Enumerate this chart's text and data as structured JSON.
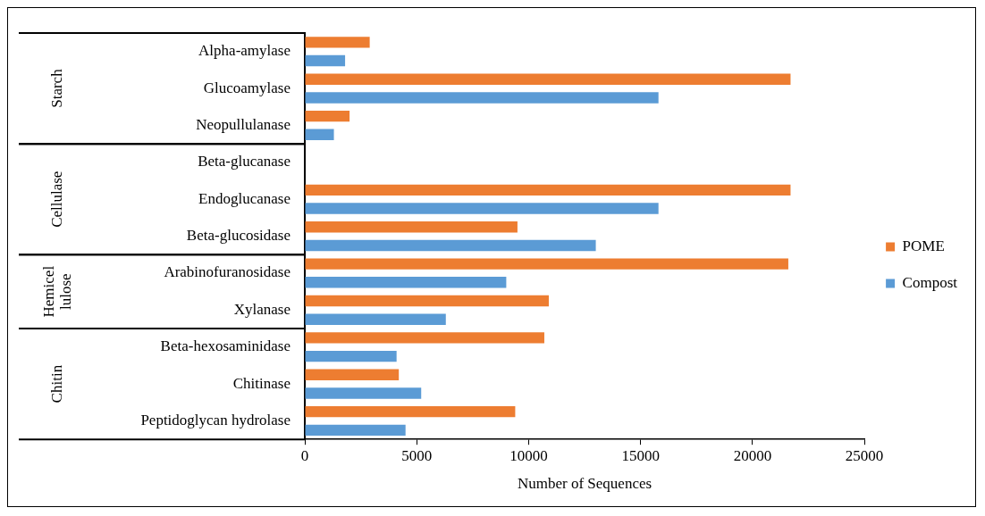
{
  "chart_data": {
    "type": "bar",
    "orientation": "horizontal",
    "xlabel": "Number of Sequences",
    "categories": [
      "Alpha-amylase",
      "Glucoamylase",
      "Neopullulanase",
      "Beta-glucanase",
      "Endoglucanase",
      "Beta-glucosidase",
      "Arabinofuranosidase",
      "Xylanase",
      "Beta-hexosaminidase",
      "Chitinase",
      "Peptidoglycan hydrolase"
    ],
    "series": [
      {
        "name": "POME",
        "color": "#ed7d31",
        "values": [
          2900,
          21700,
          2000,
          0,
          21700,
          9500,
          21600,
          10900,
          10700,
          4200,
          9400
        ]
      },
      {
        "name": "Compost",
        "color": "#5b9bd5",
        "values": [
          1800,
          15800,
          1300,
          0,
          15800,
          13000,
          9000,
          6300,
          4100,
          5200,
          4500
        ]
      }
    ],
    "xlim": [
      0,
      25000
    ],
    "xticks": [
      0,
      5000,
      10000,
      15000,
      20000,
      25000
    ],
    "grid": false,
    "legend": "right",
    "annotations": [
      "Starch",
      "Cellulase",
      "Hemicel lulose",
      "Chitin"
    ]
  }
}
